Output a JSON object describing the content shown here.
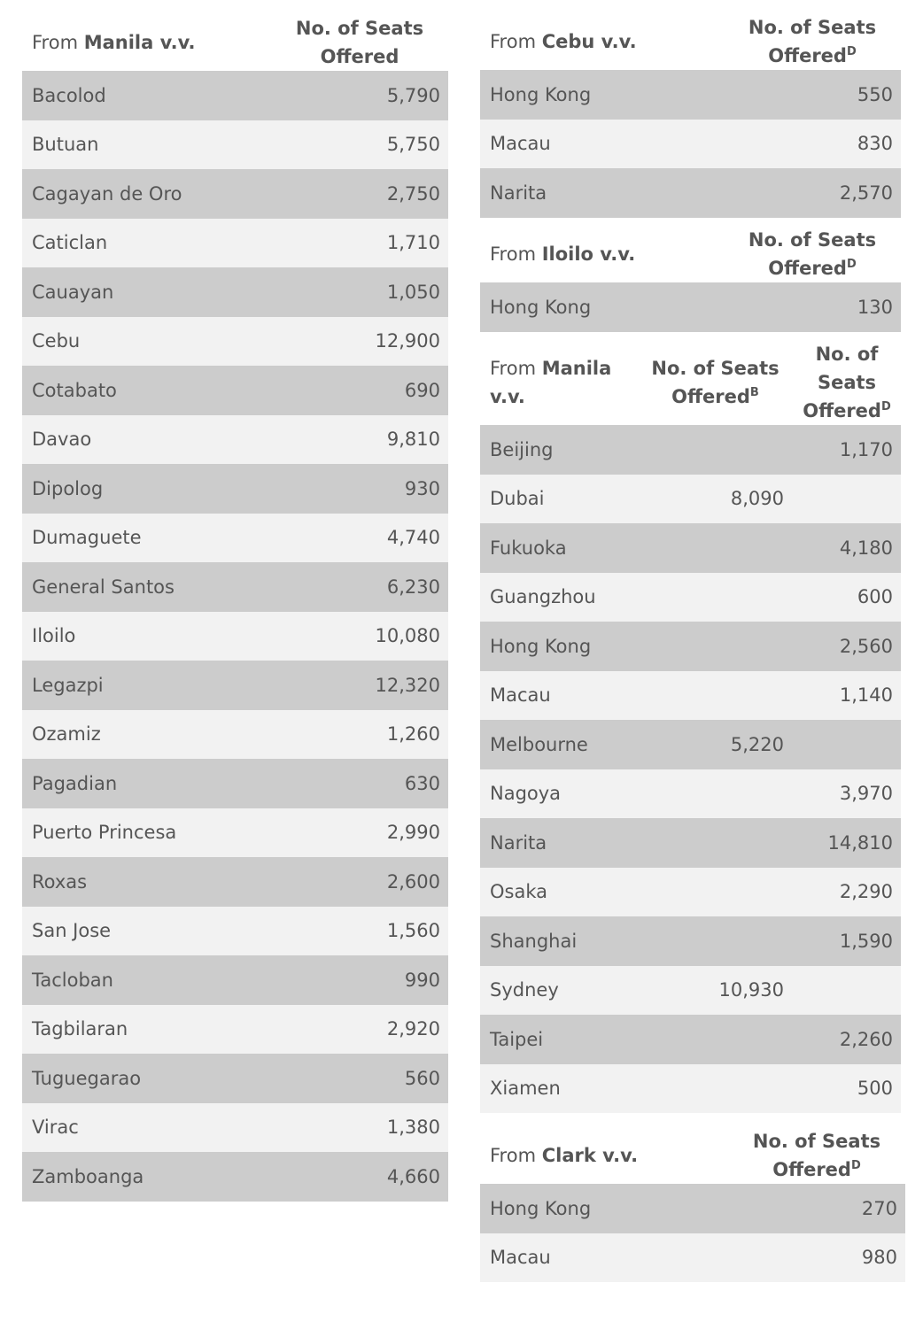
{
  "colors": {
    "row_dark": "#cccccc",
    "row_light": "#f2f2f2",
    "text": "#555555"
  },
  "tables": [
    {
      "id": "manila-domestic",
      "from_prefix": "From",
      "origin": "Manila v.v.",
      "columns": [
        {
          "label": "No. of Seats Offered",
          "sup": ""
        }
      ],
      "rows": [
        [
          "Bacolod",
          "5,790"
        ],
        [
          "Butuan",
          "5,750"
        ],
        [
          "Cagayan de Oro",
          "2,750"
        ],
        [
          "Caticlan",
          "1,710"
        ],
        [
          "Cauayan",
          "1,050"
        ],
        [
          "Cebu",
          "12,900"
        ],
        [
          "Cotabato",
          "690"
        ],
        [
          "Davao",
          "9,810"
        ],
        [
          "Dipolog",
          "930"
        ],
        [
          "Dumaguete",
          "4,740"
        ],
        [
          "General Santos",
          "6,230"
        ],
        [
          "Iloilo",
          "10,080"
        ],
        [
          "Legazpi",
          "12,320"
        ],
        [
          "Ozamiz",
          "1,260"
        ],
        [
          "Pagadian",
          "630"
        ],
        [
          "Puerto Princesa",
          "2,990"
        ],
        [
          "Roxas",
          "2,600"
        ],
        [
          "San Jose",
          "1,560"
        ],
        [
          "Tacloban",
          "990"
        ],
        [
          "Tagbilaran",
          "2,920"
        ],
        [
          "Tuguegarao",
          "560"
        ],
        [
          "Virac",
          "1,380"
        ],
        [
          "Zamboanga",
          "4,660"
        ]
      ]
    },
    {
      "id": "cebu",
      "from_prefix": "From",
      "origin": "Cebu v.v.",
      "columns": [
        {
          "label": "No. of Seats Offered",
          "sup": "D"
        }
      ],
      "rows": [
        [
          "Hong Kong",
          "550"
        ],
        [
          "Macau",
          "830"
        ],
        [
          "Narita",
          "2,570"
        ]
      ]
    },
    {
      "id": "iloilo",
      "from_prefix": "From",
      "origin": "Iloilo v.v.",
      "columns": [
        {
          "label": "No. of Seats Offered",
          "sup": "D"
        }
      ],
      "rows": [
        [
          "Hong Kong",
          "130"
        ]
      ]
    },
    {
      "id": "manila-international",
      "from_prefix": "From",
      "origin": "Manila v.v.",
      "columns": [
        {
          "label": "No. of Seats Offered",
          "sup": "B"
        },
        {
          "label": "No. of Seats Offered",
          "sup": "D"
        }
      ],
      "rows": [
        [
          "Beijing",
          "",
          "1,170"
        ],
        [
          "Dubai",
          "8,090",
          ""
        ],
        [
          "Fukuoka",
          "",
          "4,180"
        ],
        [
          "Guangzhou",
          "",
          "600"
        ],
        [
          "Hong Kong",
          "",
          "2,560"
        ],
        [
          "Macau",
          "",
          "1,140"
        ],
        [
          "Melbourne",
          "5,220",
          ""
        ],
        [
          "Nagoya",
          "",
          "3,970"
        ],
        [
          "Narita",
          "",
          "14,810"
        ],
        [
          "Osaka",
          "",
          "2,290"
        ],
        [
          "Shanghai",
          "",
          "1,590"
        ],
        [
          "Sydney",
          "10,930",
          ""
        ],
        [
          "Taipei",
          "",
          "2,260"
        ],
        [
          "Xiamen",
          "",
          "500"
        ]
      ]
    },
    {
      "id": "clark",
      "from_prefix": "From",
      "origin": "Clark v.v.",
      "columns": [
        {
          "label": "No. of Seats Offered",
          "sup": "D"
        }
      ],
      "rows": [
        [
          "Hong Kong",
          "270"
        ],
        [
          "Macau",
          "980"
        ]
      ]
    }
  ]
}
